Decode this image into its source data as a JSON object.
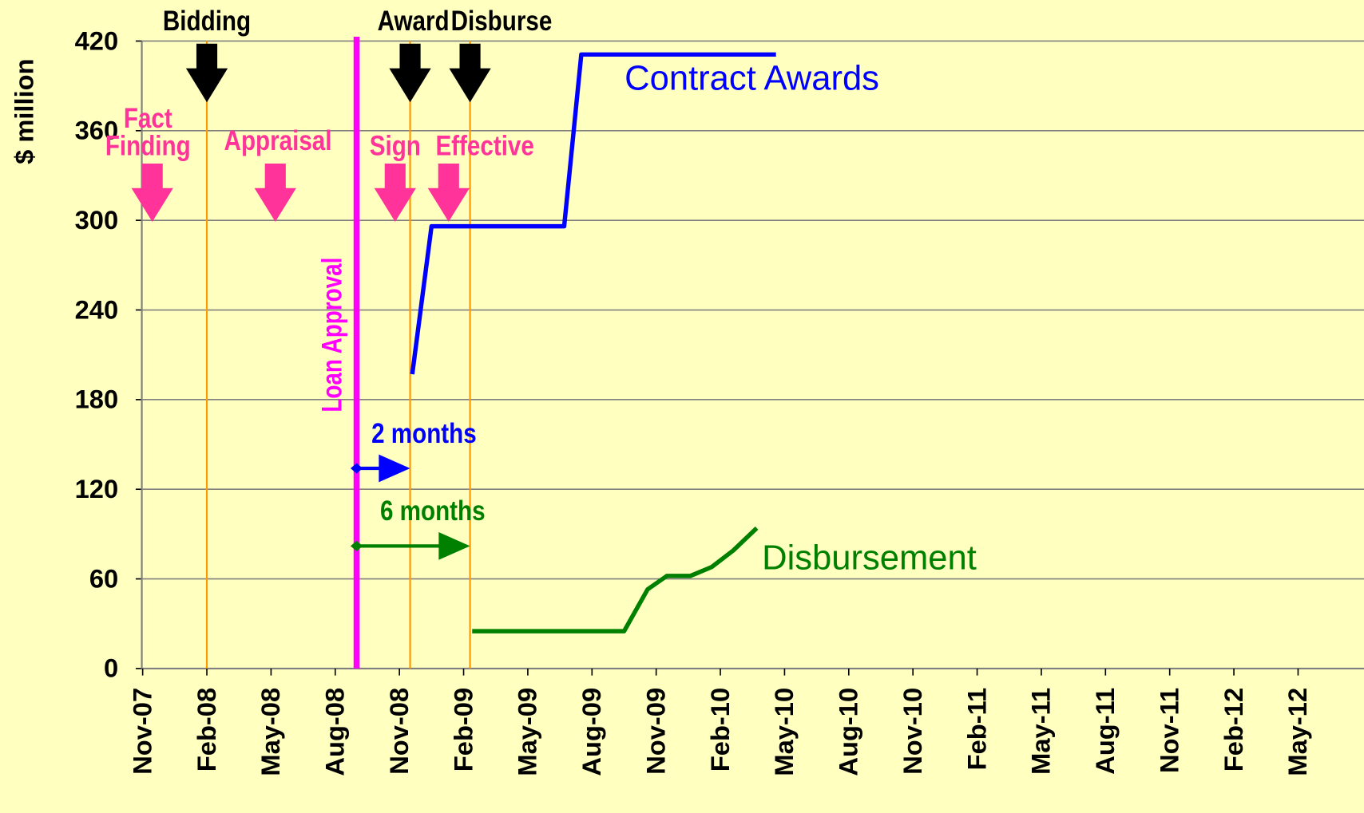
{
  "chart_data": {
    "type": "line",
    "ylabel": "$ million",
    "xlim": [
      0,
      57
    ],
    "xticks": [
      {
        "value": 0,
        "label": "Nov-07"
      },
      {
        "value": 3,
        "label": "Feb-08"
      },
      {
        "value": 6,
        "label": "May-08"
      },
      {
        "value": 9,
        "label": "Aug-08"
      },
      {
        "value": 12,
        "label": "Nov-08"
      },
      {
        "value": 15,
        "label": "Feb-09"
      },
      {
        "value": 18,
        "label": "May-09"
      },
      {
        "value": 21,
        "label": "Aug-09"
      },
      {
        "value": 24,
        "label": "Nov-09"
      },
      {
        "value": 27,
        "label": "Feb-10"
      },
      {
        "value": 30,
        "label": "May-10"
      },
      {
        "value": 33,
        "label": "Aug-10"
      },
      {
        "value": 36,
        "label": "Nov-10"
      },
      {
        "value": 39,
        "label": "Feb-11"
      },
      {
        "value": 42,
        "label": "May-11"
      },
      {
        "value": 45,
        "label": "Aug-11"
      },
      {
        "value": 48,
        "label": "Nov-11"
      },
      {
        "value": 51,
        "label": "Feb-12"
      },
      {
        "value": 54,
        "label": "May-12"
      }
    ],
    "ylim": [
      0,
      420
    ],
    "yticks": [
      0,
      60,
      120,
      180,
      240,
      300,
      360,
      420
    ],
    "grid": true,
    "series": [
      {
        "name": "Contract Awards",
        "color": "#0000ff",
        "x": [
          12.6,
          13.5,
          19.7,
          20.5,
          29.6
        ],
        "values": [
          197,
          296,
          296,
          411,
          411
        ]
      },
      {
        "name": "Disbursement",
        "color": "#008000",
        "x": [
          15.4,
          22.5,
          23.6,
          24.5,
          25.6,
          26.6,
          27.6,
          28.7
        ],
        "values": [
          25,
          25,
          53,
          62,
          62,
          68,
          79,
          94
        ]
      }
    ],
    "stages": {
      "color": "#ff3399",
      "tip": 299,
      "items": [
        {
          "lines": [
            "Fact",
            "Finding"
          ],
          "x": 0.45
        },
        {
          "lines": [
            "Appraisal"
          ],
          "x": 6.2
        },
        {
          "lines": [
            "Sign"
          ],
          "x": 11.8
        },
        {
          "lines": [
            "Effective"
          ],
          "x": 14.3
        }
      ]
    },
    "milestones": {
      "color": "#000000",
      "line_color": "#ff9900",
      "tip": 379,
      "items": [
        {
          "label": "Bidding",
          "x": 3
        },
        {
          "label": "Award",
          "x": 12.5
        },
        {
          "label": "Disburse",
          "x": 15.3
        }
      ]
    },
    "approval": {
      "label": "Loan Approval",
      "x": 10,
      "color": "#ff00ff"
    },
    "spans": [
      {
        "label": "2 months",
        "from": 10,
        "to": 12.5,
        "y": 134,
        "color": "#0000ff"
      },
      {
        "label": "6 months",
        "from": 10,
        "to": 15.3,
        "y": 82,
        "color": "#008000"
      }
    ]
  }
}
